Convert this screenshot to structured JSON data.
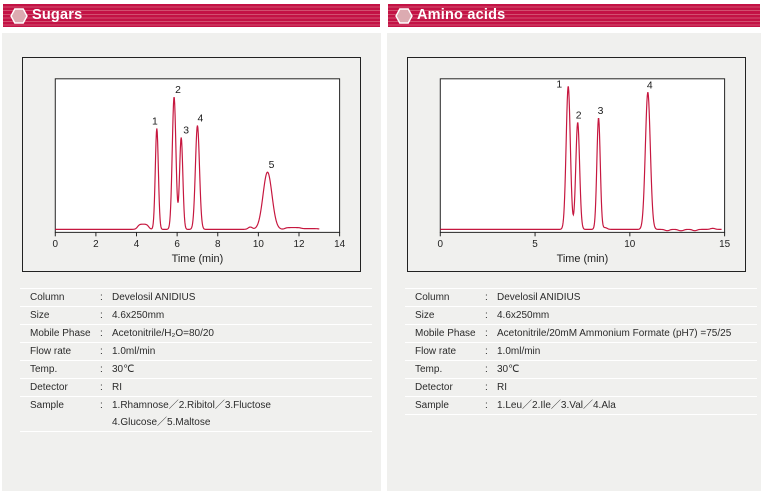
{
  "theme": {
    "header_red": "#c31245",
    "header_stripe": "#d2506f",
    "hexagon_fill": "#dcabb1",
    "panel_bg": "#f0f0ee",
    "plot_bg": "#ffffff",
    "border_dark": "#222222",
    "trace_color": "#c6173f",
    "text_color": "#2b2b2b",
    "title_color": "#ffffff"
  },
  "panels": [
    {
      "title": "Sugars",
      "table": {
        "colon": ":",
        "rows": [
          {
            "label": "Column",
            "value": "Develosil ANIDIUS"
          },
          {
            "label": "Size",
            "value": "4.6x250mm"
          },
          {
            "label": "Mobile Phase",
            "value": "Acetonitrile/H₂O=80/20"
          },
          {
            "label": "Flow rate",
            "value": "1.0ml/min"
          },
          {
            "label": "Temp.",
            "value": "30℃"
          },
          {
            "label": "Detector",
            "value": "RI"
          },
          {
            "label": "Sample",
            "value": "1.Rhamnose／2.Ribitol／3.Fluctose",
            "value2": "4.Glucose／5.Maltose"
          }
        ]
      }
    },
    {
      "title": "Amino acids",
      "table": {
        "colon": ":",
        "rows": [
          {
            "label": "Column",
            "value": "Develosil ANIDIUS"
          },
          {
            "label": "Size",
            "value": "4.6x250mm"
          },
          {
            "label": "Mobile Phase",
            "value": "Acetonitrile/20mM Ammonium Formate (pH7) =75/25"
          },
          {
            "label": "Flow rate",
            "value": "1.0ml/min"
          },
          {
            "label": "Temp.",
            "value": "30℃"
          },
          {
            "label": "Detector",
            "value": "RI"
          },
          {
            "label": "Sample",
            "value": "1.Leu／2.Ile／3.Val／4.Ala"
          }
        ]
      }
    }
  ],
  "chart_data": [
    {
      "type": "line",
      "title": "Sugars chromatogram on Develosil ANIDIUS",
      "xlabel": "Time (min)",
      "ylabel": "",
      "x_range": [
        0,
        14
      ],
      "x_ticks": [
        0,
        2,
        4,
        6,
        8,
        10,
        12,
        14
      ],
      "grid": false,
      "legend": "none",
      "peaks": [
        {
          "label": "1",
          "time": 5.0,
          "height": 0.67,
          "sigma": 0.075,
          "label_dx": -2
        },
        {
          "label": "2",
          "time": 5.85,
          "height": 0.88,
          "sigma": 0.09,
          "label_dx": 4
        },
        {
          "label": "3",
          "time": 6.2,
          "height": 0.61,
          "sigma": 0.08,
          "label_dx": 5
        },
        {
          "label": "4",
          "time": 7.0,
          "height": 0.69,
          "sigma": 0.1,
          "label_dx": 3
        },
        {
          "label": "5",
          "time": 10.45,
          "height": 0.38,
          "sigma": 0.22,
          "label_dx": 4
        }
      ],
      "baseline_bumps": [
        {
          "from": 4.05,
          "to": 4.6,
          "height": 0.035
        },
        {
          "from": 9.5,
          "to": 9.7,
          "height": 0.02
        },
        {
          "from": 11.3,
          "to": 12.1,
          "height": 0.012
        },
        {
          "from": 12.1,
          "to": 13.0,
          "height": 0.005
        }
      ],
      "trace_end": 13.0
    },
    {
      "type": "line",
      "title": "Amino acids chromatogram on Develosil ANIDIUS",
      "xlabel": "Time (min)",
      "ylabel": "",
      "x_range": [
        0,
        15
      ],
      "x_ticks": [
        0,
        5,
        10,
        15
      ],
      "grid": false,
      "legend": "none",
      "peaks": [
        {
          "label": "1",
          "time": 6.75,
          "height": 0.95,
          "sigma": 0.11,
          "label_dx": -9
        },
        {
          "label": "2",
          "time": 7.25,
          "height": 0.71,
          "sigma": 0.1,
          "label_dx": 1
        },
        {
          "label": "3",
          "time": 8.35,
          "height": 0.74,
          "sigma": 0.09,
          "label_dx": 2
        },
        {
          "label": "4",
          "time": 10.95,
          "height": 0.91,
          "sigma": 0.13,
          "label_dx": 2
        }
      ],
      "baseline_bumps": [
        {
          "from": 8.6,
          "to": 8.8,
          "height": 0.015
        },
        {
          "from": 11.85,
          "to": 12.1,
          "height": -0.01
        },
        {
          "from": 12.55,
          "to": 12.85,
          "height": -0.01
        },
        {
          "from": 13.3,
          "to": 13.55,
          "height": -0.01
        },
        {
          "from": 14.25,
          "to": 14.5,
          "height": 0.008
        }
      ],
      "trace_end": 14.85
    }
  ]
}
